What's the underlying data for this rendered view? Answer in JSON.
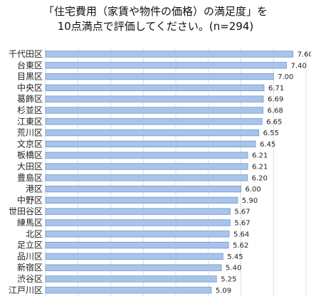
{
  "chart_data": {
    "type": "bar",
    "orientation": "horizontal",
    "title_line1": "「住宅費用（家賃や物件の価格）の満足度」を",
    "title_line2": "10点満点で評価してください。(n=294)",
    "categories": [
      "千代田区",
      "台東区",
      "目黒区",
      "中央区",
      "葛飾区",
      "杉並区",
      "江東区",
      "荒川区",
      "文京区",
      "板橋区",
      "大田区",
      "豊島区",
      "港区",
      "中野区",
      "世田谷区",
      "練馬区",
      "北区",
      "足立区",
      "品川区",
      "新宿区",
      "渋谷区",
      "江戸川区"
    ],
    "values": [
      7.6,
      7.4,
      7.0,
      6.71,
      6.69,
      6.68,
      6.65,
      6.55,
      6.45,
      6.21,
      6.21,
      6.2,
      6.0,
      5.9,
      5.67,
      5.67,
      5.64,
      5.62,
      5.45,
      5.4,
      5.25,
      5.09
    ],
    "value_labels": [
      "7.60",
      "7.40",
      "7.00",
      "6.71",
      "6.69",
      "6.68",
      "6.65",
      "6.55",
      "6.45",
      "6.21",
      "6.21",
      "6.20",
      "6.00",
      "5.90",
      "5.67",
      "5.67",
      "5.64",
      "5.62",
      "5.45",
      "5.40",
      "5.25",
      "5.09"
    ],
    "xlim": [
      0,
      8
    ],
    "grid": true,
    "legend": "none",
    "bar_color": "#a9c4ea",
    "bar_border_color": "#6f96cc",
    "grid_color": "#d6d6d6"
  }
}
